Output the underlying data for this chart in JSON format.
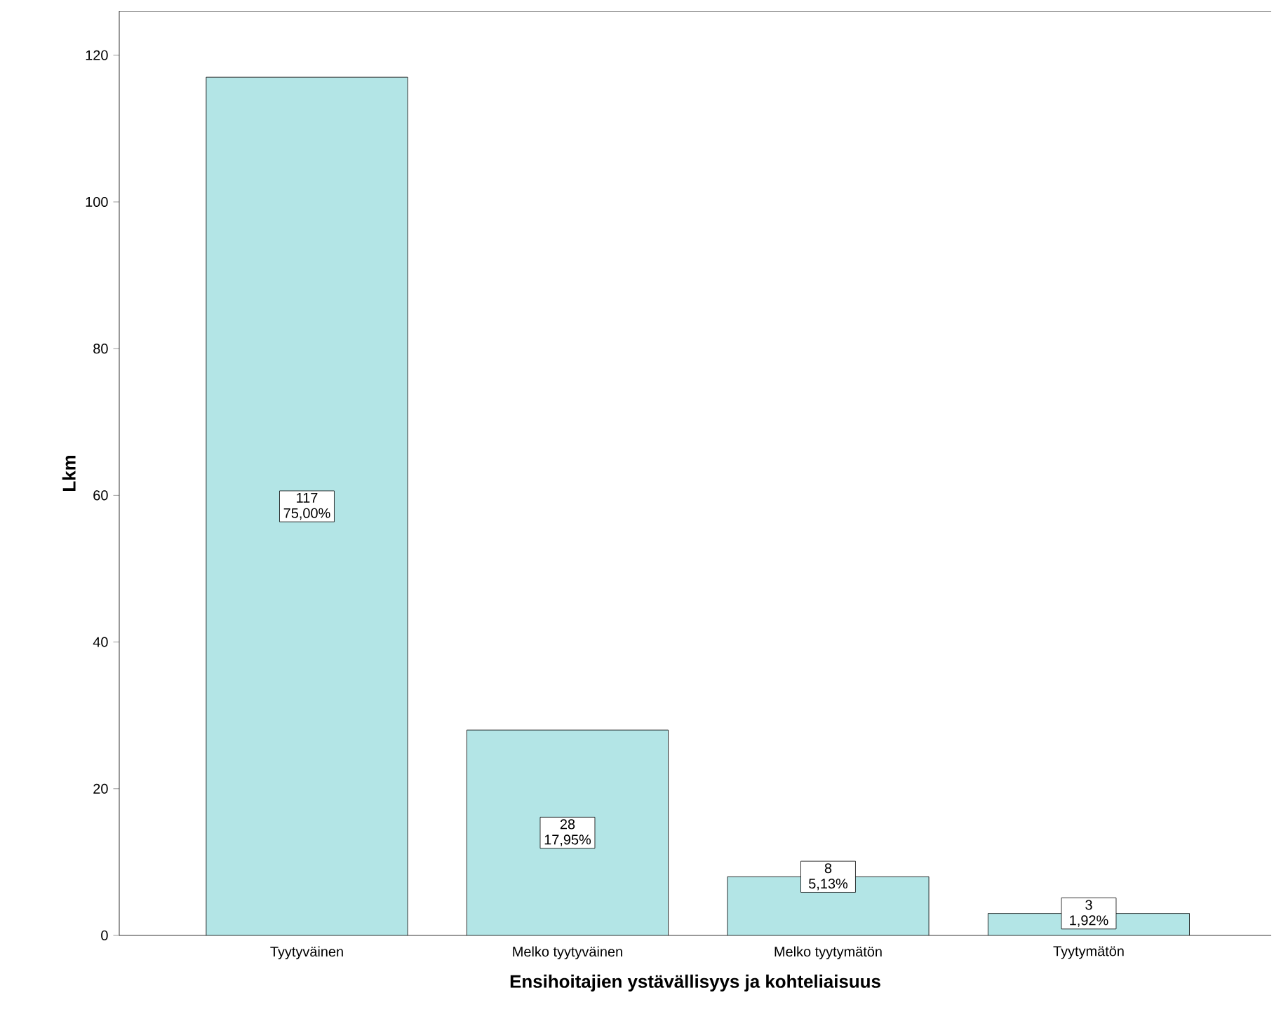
{
  "chart_data": {
    "type": "bar",
    "xlabel": "Ensihoitajien ystävällisyys ja kohteliaisuus",
    "ylabel": "Lkm",
    "categories": [
      "Tyytyväinen",
      "Melko tyytyväinen",
      "Melko tyytymätön",
      "Tyytymätön"
    ],
    "values": [
      117,
      28,
      8,
      3
    ],
    "value_labels": [
      "117 75,00%",
      "28 17,95%",
      "8 5,13%",
      "3 1,92%"
    ],
    "color": "#b3e5e6",
    "ylim": [
      0,
      126
    ],
    "yticks": [
      0,
      20,
      40,
      60,
      80,
      100,
      120
    ],
    "grid": false
  }
}
